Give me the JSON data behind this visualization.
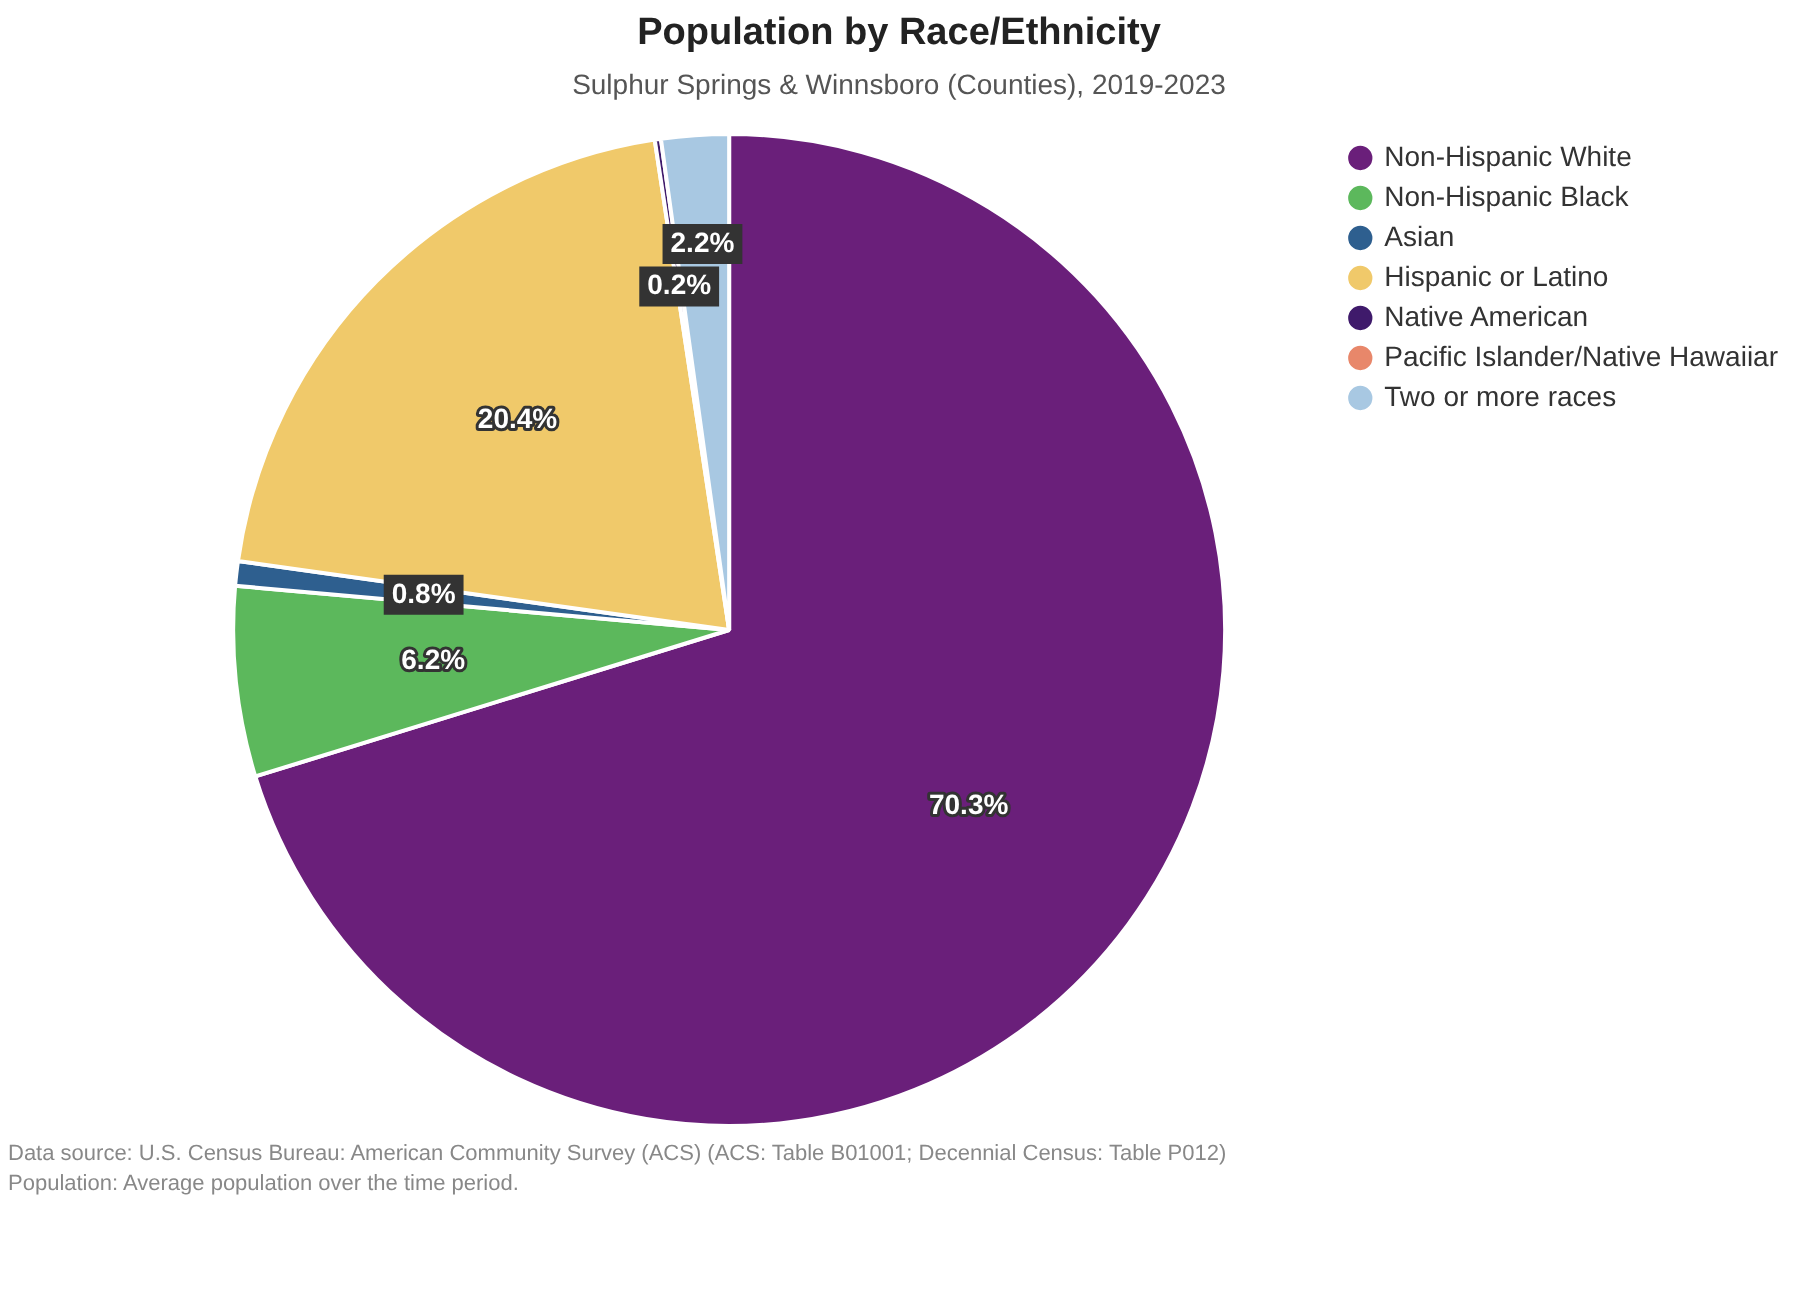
{
  "chart_data": {
    "type": "pie",
    "title": "Population by Race/Ethnicity",
    "subtitle": "Sulphur Springs & Winnsboro (Counties), 2019-2023",
    "categories": [
      "Non-Hispanic White",
      "Non-Hispanic Black",
      "Asian",
      "Hispanic or Latino",
      "Native American",
      "Pacific Islander/Native Hawaiiar",
      "Two or more races"
    ],
    "values": [
      70.3,
      6.2,
      0.8,
      20.4,
      0.2,
      0,
      2.2
    ],
    "value_labels": [
      "70.3%",
      "6.2%",
      "0.8%",
      "20.4%",
      "0.2%",
      null,
      "2.2%"
    ],
    "colors": [
      "#6a1f7a",
      "#5cb85c",
      "#2e5f8f",
      "#f0c96a",
      "#3f1a6b",
      "#e8876a",
      "#a8c8e2"
    ],
    "legend": "top right",
    "annotations": [
      "Data source: U.S. Census Bureau: American Community Survey (ACS) (ACS: Table B01001; Decennial Census: Table P012)",
      "Population: Average population over the time period."
    ]
  }
}
